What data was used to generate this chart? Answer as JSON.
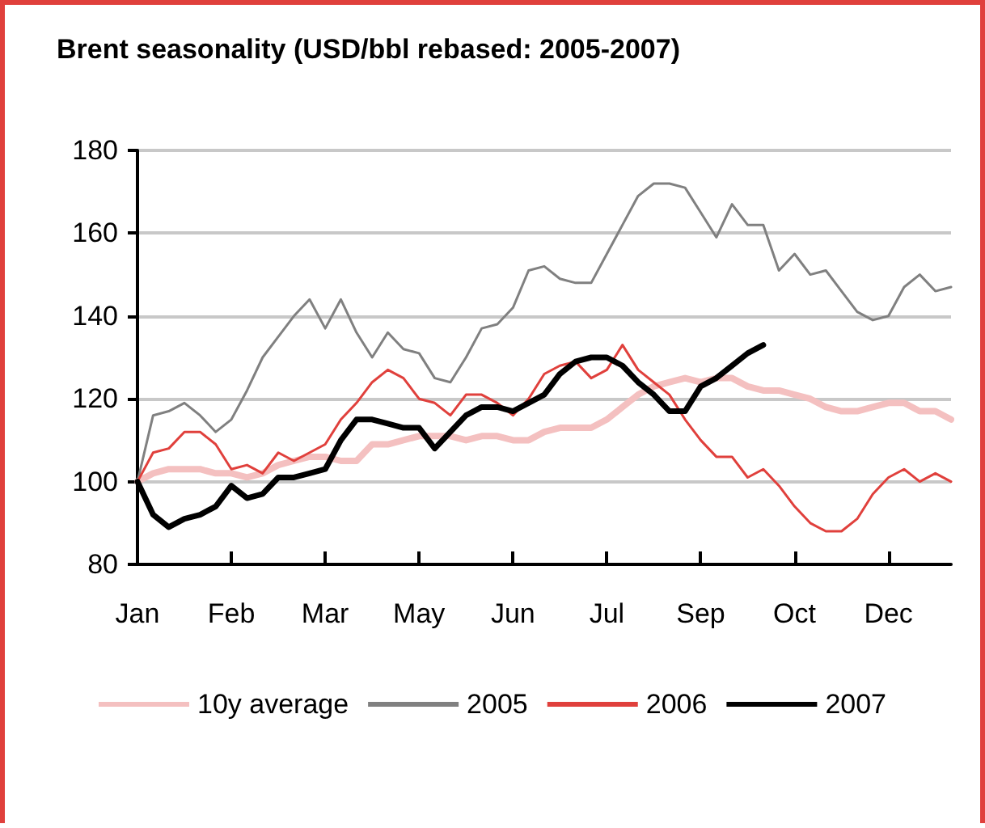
{
  "chart_data": {
    "type": "line",
    "title": "Brent seasonality (USD/bbl rebased: 2005-2007)",
    "categories": [
      "Jan",
      null,
      null,
      null,
      null,
      null,
      "Feb",
      null,
      null,
      null,
      null,
      null,
      "Mar",
      null,
      null,
      null,
      null,
      null,
      "May",
      null,
      null,
      null,
      null,
      null,
      "Jun",
      null,
      null,
      null,
      null,
      null,
      "Jul",
      null,
      null,
      null,
      null,
      null,
      "Sep",
      null,
      null,
      null,
      null,
      null,
      "Oct",
      null,
      null,
      null,
      null,
      null,
      "Dec",
      null,
      null,
      null,
      null
    ],
    "ylim": [
      80,
      180
    ],
    "yticks": [
      80,
      100,
      120,
      140,
      160,
      180
    ],
    "grid": "y",
    "legend": "bottom",
    "marker": "none",
    "line_style": "solid",
    "series": [
      {
        "name": "10y average",
        "color": "#f4c0c0",
        "values": [
          100,
          102,
          103,
          103,
          103,
          102,
          102,
          101,
          102,
          104,
          105,
          106,
          106,
          105,
          105,
          109,
          109,
          110,
          111,
          111,
          111,
          110,
          111,
          111,
          110,
          110,
          112,
          113,
          113,
          113,
          115,
          118,
          121,
          123,
          124,
          125,
          124,
          125,
          125,
          123,
          122,
          122,
          121,
          120,
          118,
          117,
          117,
          118,
          119,
          119,
          117,
          117,
          115
        ]
      },
      {
        "name": "2005",
        "color": "#808080",
        "values": [
          100,
          116,
          117,
          119,
          116,
          112,
          115,
          122,
          130,
          135,
          140,
          144,
          137,
          144,
          136,
          130,
          136,
          132,
          131,
          125,
          124,
          130,
          137,
          138,
          142,
          151,
          152,
          149,
          148,
          148,
          155,
          162,
          169,
          172,
          172,
          171,
          165,
          159,
          167,
          162,
          162,
          151,
          155,
          150,
          151,
          146,
          141,
          139,
          140,
          147,
          150,
          146,
          147
        ]
      },
      {
        "name": "2006",
        "color": "#e0403c",
        "values": [
          100,
          107,
          108,
          112,
          112,
          109,
          103,
          104,
          102,
          107,
          105,
          107,
          109,
          115,
          119,
          124,
          127,
          125,
          120,
          119,
          116,
          121,
          121,
          119,
          116,
          120,
          126,
          128,
          129,
          125,
          127,
          133,
          127,
          124,
          121,
          115,
          110,
          106,
          106,
          101,
          103,
          99,
          94,
          90,
          88,
          88,
          91,
          97,
          101,
          103,
          100,
          102,
          100
        ]
      },
      {
        "name": "2007",
        "color": "#000000",
        "values": [
          100,
          92,
          89,
          91,
          92,
          94,
          99,
          96,
          97,
          101,
          101,
          102,
          103,
          110,
          115,
          115,
          114,
          113,
          113,
          108,
          112,
          116,
          118,
          118,
          117,
          119,
          121,
          126,
          129,
          130,
          130,
          128,
          124,
          121,
          117,
          117,
          123,
          125,
          128,
          131,
          133,
          null,
          null,
          null,
          null,
          null,
          null,
          null,
          null,
          null,
          null,
          null,
          null
        ]
      }
    ]
  }
}
